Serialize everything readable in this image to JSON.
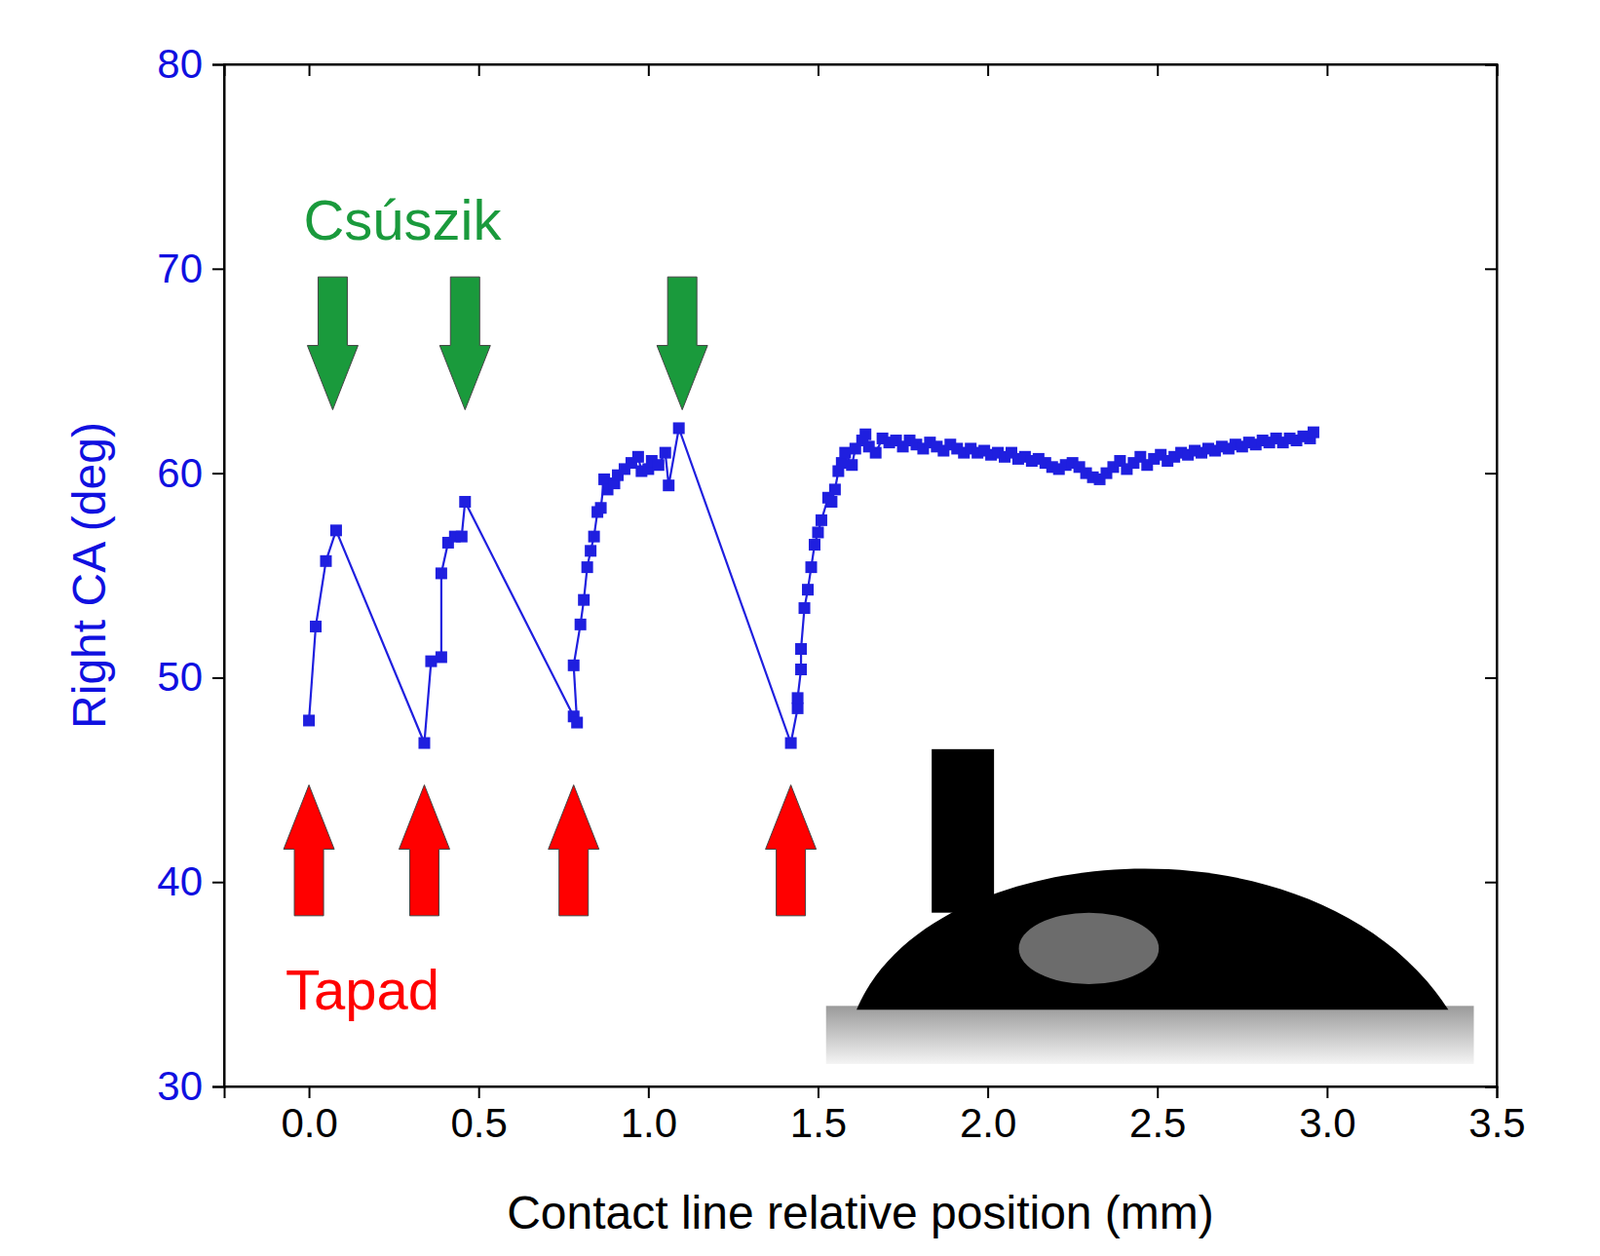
{
  "chart_data": {
    "type": "line",
    "x_label": "Contact line relative position (mm)",
    "y_label": "Right CA (deg)",
    "xlim": [
      -0.25,
      3.5
    ],
    "ylim": [
      30,
      80
    ],
    "xticks": [
      {
        "value": 0,
        "label": "0.0"
      },
      0.5,
      {
        "value": 1,
        "label": "1.0"
      },
      1.5,
      {
        "value": 2,
        "label": "2.0"
      },
      2.5,
      {
        "value": 3,
        "label": "3.0"
      },
      3.5
    ],
    "yticks": [
      30,
      40,
      50,
      60,
      70,
      80
    ],
    "grid": false,
    "series": [
      {
        "color": "#1f1fdf",
        "marker": "square",
        "line_style": "solid",
        "x": [
          0.0,
          0.02,
          0.05,
          0.08,
          0.34,
          0.36,
          0.39,
          0.39,
          0.41,
          0.43,
          0.45,
          0.46,
          0.78,
          0.79,
          0.78,
          0.8,
          0.81,
          0.82,
          0.83,
          0.84,
          0.85,
          0.86,
          0.87,
          0.88,
          0.9,
          0.91,
          0.93,
          0.95,
          0.97,
          0.98,
          1.0,
          1.01,
          1.03,
          1.05,
          1.06,
          1.09,
          1.42,
          1.44,
          1.44,
          1.45,
          1.45,
          1.46,
          1.47,
          1.48,
          1.49,
          1.5,
          1.51,
          1.53,
          1.54,
          1.55,
          1.56,
          1.57,
          1.58,
          1.6,
          1.61,
          1.63,
          1.64,
          1.65,
          1.67,
          1.69,
          1.71,
          1.73,
          1.75,
          1.77,
          1.79,
          1.81,
          1.83,
          1.85,
          1.87,
          1.89,
          1.91,
          1.93,
          1.95,
          1.97,
          1.99,
          2.01,
          2.03,
          2.05,
          2.07,
          2.09,
          2.11,
          2.13,
          2.15,
          2.17,
          2.19,
          2.21,
          2.23,
          2.25,
          2.27,
          2.29,
          2.31,
          2.33,
          2.35,
          2.37,
          2.39,
          2.41,
          2.43,
          2.45,
          2.47,
          2.49,
          2.51,
          2.53,
          2.55,
          2.57,
          2.59,
          2.61,
          2.63,
          2.65,
          2.67,
          2.69,
          2.71,
          2.73,
          2.75,
          2.77,
          2.79,
          2.81,
          2.83,
          2.85,
          2.87,
          2.89,
          2.91,
          2.93,
          2.95,
          2.96
        ],
        "values": [
          47.9,
          52.5,
          55.7,
          57.2,
          46.8,
          50.8,
          51.0,
          55.1,
          56.6,
          56.9,
          56.9,
          58.6,
          48.1,
          47.8,
          50.6,
          52.6,
          53.8,
          55.4,
          56.2,
          56.9,
          58.1,
          58.3,
          59.7,
          59.2,
          59.5,
          59.9,
          60.2,
          60.5,
          60.8,
          60.1,
          60.2,
          60.6,
          60.4,
          61.0,
          59.4,
          62.2,
          46.8,
          48.5,
          49.0,
          50.4,
          51.4,
          53.4,
          54.3,
          55.4,
          56.5,
          57.1,
          57.7,
          58.8,
          58.6,
          59.2,
          60.1,
          60.5,
          61.0,
          60.4,
          61.2,
          61.6,
          61.9,
          61.3,
          61.0,
          61.7,
          61.5,
          61.6,
          61.3,
          61.6,
          61.4,
          61.2,
          61.5,
          61.3,
          61.1,
          61.4,
          61.2,
          61.0,
          61.2,
          61.0,
          61.1,
          60.9,
          61.0,
          60.8,
          61.0,
          60.7,
          60.8,
          60.6,
          60.7,
          60.5,
          60.3,
          60.2,
          60.4,
          60.5,
          60.3,
          60.0,
          59.8,
          59.7,
          60.0,
          60.3,
          60.6,
          60.2,
          60.5,
          60.8,
          60.4,
          60.7,
          60.9,
          60.6,
          60.8,
          61.0,
          60.9,
          61.1,
          61.0,
          61.2,
          61.1,
          61.3,
          61.2,
          61.4,
          61.3,
          61.5,
          61.4,
          61.6,
          61.5,
          61.7,
          61.5,
          61.7,
          61.6,
          61.8,
          61.7,
          62.0
        ]
      }
    ],
    "annotations": [
      {
        "text": "Csúszik",
        "color": "#1a9a3c",
        "x": [
          0.07,
          0.46,
          1.1
        ]
      },
      {
        "text": "Tapad",
        "color": "#ff0000",
        "x": [
          0.0,
          0.34,
          0.78,
          1.42
        ]
      }
    ]
  }
}
